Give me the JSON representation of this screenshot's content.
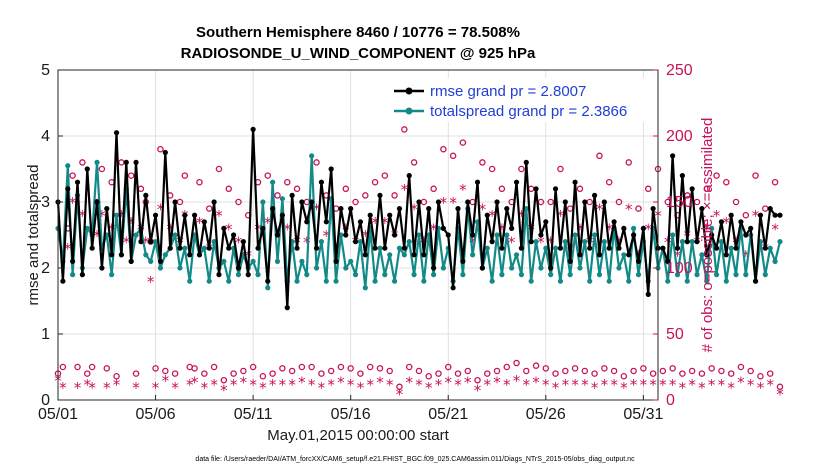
{
  "chart_data": {
    "type": "line",
    "title_line1": "Southern Hemisphere 8460 / 10776 = 78.508%",
    "title_line2": "RADIOSONDE_U_WIND_COMPONENT @ 925 hPa",
    "xlabel": "May.01,2015 00:00:00 start",
    "ylabel": "rmse and totalspread",
    "ylabel_right": "# of obs: o=possible; ×=assimilated",
    "footnote": "data file: /Users/raeder/DAI/ATM_forcXX/CAM6_setup/f.e21.FHIST_BGC.f09_025.CAM6assim.011/Diags_NTrS_2015-05/obs_diag_output.nc",
    "x_ticks": [
      {
        "day": 0,
        "label": "05/01"
      },
      {
        "day": 5,
        "label": "05/06"
      },
      {
        "day": 10,
        "label": "05/11"
      },
      {
        "day": 15,
        "label": "05/16"
      },
      {
        "day": 20,
        "label": "05/21"
      },
      {
        "day": 25,
        "label": "05/26"
      },
      {
        "day": 30,
        "label": "05/31"
      }
    ],
    "y_ticks": [
      "0",
      "1",
      "2",
      "3",
      "4",
      "5"
    ],
    "y2_ticks": [
      "0",
      "50",
      "100",
      "150",
      "200",
      "250"
    ],
    "xlim": [
      0,
      30.75
    ],
    "ylim": [
      0,
      5
    ],
    "y2lim": [
      0,
      250
    ],
    "x_step_days": 0.25,
    "legend_location": "top-right",
    "series": [
      {
        "name": "rmse grand pr = 2.8007",
        "color": "#000000",
        "values": [
          3.0,
          1.8,
          3.2,
          2.1,
          3.3,
          1.9,
          3.5,
          2.3,
          3.0,
          2.0,
          2.9,
          2.2,
          4.05,
          2.2,
          3.6,
          2.1,
          3.6,
          2.4,
          3.1,
          2.4,
          2.8,
          2.1,
          3.75,
          2.3,
          3.0,
          2.3,
          2.8,
          2.2,
          2.8,
          2.2,
          2.7,
          2.3,
          3.0,
          1.9,
          2.6,
          2.3,
          2.5,
          2.0,
          2.4,
          1.9,
          4.1,
          2.3,
          2.6,
          1.8,
          2.9,
          2.5,
          2.8,
          1.4,
          3.1,
          2.3,
          3.0,
          2.7,
          3.0,
          2.3,
          3.3,
          2.7,
          3.5,
          2.1,
          2.9,
          2.5,
          2.9,
          2.4,
          2.7,
          2.2,
          2.8,
          2.3,
          3.1,
          2.3,
          2.8,
          2.5,
          2.9,
          2.3,
          3.4,
          2.2,
          3.0,
          2.2,
          2.9,
          2.0,
          3.0,
          2.6,
          2.5,
          1.7,
          2.9,
          2.1,
          3.0,
          2.5,
          3.3,
          2.0,
          2.8,
          2.4,
          3.0,
          2.3,
          2.9,
          2.6,
          3.3,
          2.3,
          3.6,
          2.4,
          3.2,
          2.5,
          2.7,
          2.0,
          3.2,
          2.3,
          3.0,
          2.1,
          3.3,
          2.2,
          3.0,
          2.3,
          3.1,
          2.2,
          3.0,
          2.3,
          2.7,
          2.3,
          2.6,
          2.2,
          2.5,
          2.1,
          2.6,
          1.6,
          2.9,
          2.3,
          2.3,
          2.1,
          3.7,
          2.3,
          3.4,
          2.4,
          3.2,
          2.4,
          2.9,
          2.2,
          2.5,
          2.3,
          2.7,
          2.2,
          2.8,
          2.3,
          2.7,
          2.5,
          2.6,
          1.8,
          2.8,
          2.3,
          2.9,
          2.8,
          2.8
        ]
      },
      {
        "name": "totalspread grand pr = 2.3866",
        "color": "#138a88",
        "values": [
          2.6,
          2.1,
          3.55,
          1.9,
          3.1,
          2.0,
          2.6,
          2.5,
          3.6,
          2.3,
          2.5,
          1.9,
          2.8,
          2.2,
          3.2,
          2.1,
          2.5,
          2.6,
          2.2,
          2.1,
          2.4,
          2.0,
          2.2,
          2.3,
          2.5,
          2.0,
          2.3,
          1.8,
          2.5,
          2.2,
          2.3,
          1.8,
          2.4,
          2.0,
          2.1,
          1.8,
          2.3,
          1.9,
          2.2,
          2.0,
          2.1,
          1.9,
          3.0,
          1.7,
          3.3,
          2.1,
          3.05,
          1.8,
          2.4,
          1.8,
          2.1,
          1.9,
          3.7,
          2.0,
          2.4,
          1.8,
          3.05,
          1.8,
          2.5,
          2.0,
          2.1,
          1.9,
          2.4,
          1.7,
          2.6,
          1.8,
          2.3,
          1.9,
          2.2,
          1.8,
          2.3,
          2.2,
          2.4,
          1.9,
          2.5,
          1.8,
          2.5,
          1.9,
          2.6,
          2.0,
          2.3,
          1.8,
          2.6,
          1.9,
          2.9,
          2.2,
          2.7,
          2.0,
          2.3,
          1.8,
          2.5,
          1.9,
          2.5,
          2.0,
          2.2,
          1.9,
          2.9,
          1.8,
          2.4,
          2.0,
          2.3,
          1.9,
          2.3,
          1.8,
          2.4,
          1.9,
          2.5,
          2.0,
          2.4,
          1.8,
          2.5,
          1.9,
          2.4,
          1.8,
          2.6,
          2.0,
          2.2,
          1.8,
          2.6,
          1.9,
          2.4,
          1.8,
          2.6,
          2.0,
          2.3,
          1.8,
          2.5,
          1.9,
          2.4,
          1.8,
          2.4,
          1.9,
          2.2,
          1.8,
          2.6,
          1.9,
          2.4,
          1.8,
          2.3,
          1.9,
          2.6,
          1.9,
          2.5,
          1.8,
          2.4,
          1.9,
          2.3,
          2.1,
          2.4
        ]
      },
      {
        "name": "possible",
        "color": "#c8115a",
        "axis": "right",
        "marker": "o",
        "values": [
          20,
          25,
          130,
          170,
          25,
          180,
          20,
          25,
          150,
          175,
          24,
          165,
          18,
          180,
          150,
          170,
          20,
          160,
          150,
          120,
          24,
          190,
          22,
          155,
          20,
          150,
          170,
          25,
          24,
          165,
          20,
          145,
          25,
          175,
          15,
          160,
          20,
          150,
          22,
          140,
          25,
          165,
          18,
          170,
          20,
          155,
          24,
          165,
          22,
          160,
          25,
          150,
          25,
          180,
          20,
          155,
          22,
          145,
          25,
          160,
          24,
          150,
          20,
          155,
          25,
          165,
          24,
          170,
          22,
          155,
          10,
          205,
          25,
          180,
          22,
          150,
          18,
          160,
          20,
          190,
          25,
          185,
          20,
          195,
          22,
          150,
          15,
          180,
          20,
          175,
          22,
          160,
          25,
          150,
          28,
          175,
          22,
          160,
          26,
          150,
          24,
          150,
          20,
          175,
          22,
          145,
          24,
          160,
          22,
          150,
          20,
          185,
          24,
          165,
          22,
          150,
          18,
          180,
          22,
          145,
          24,
          160,
          20,
          175,
          22,
          150,
          24,
          140,
          20,
          155,
          22,
          150,
          20,
          160,
          24,
          170,
          22,
          165,
          20,
          150,
          25,
          140,
          22,
          170,
          18,
          145,
          20,
          165,
          10
        ]
      },
      {
        "name": "assimilated",
        "color": "#c8115a",
        "axis": "right",
        "marker": "*",
        "values": [
          15,
          10,
          115,
          150,
          10,
          140,
          12,
          10,
          125,
          140,
          10,
          130,
          12,
          140,
          120,
          135,
          10,
          130,
          120,
          90,
          10,
          145,
          15,
          130,
          10,
          120,
          140,
          12,
          14,
          135,
          10,
          115,
          12,
          140,
          8,
          130,
          12,
          120,
          14,
          110,
          12,
          130,
          10,
          135,
          12,
          125,
          12,
          130,
          12,
          120,
          14,
          120,
          12,
          145,
          10,
          125,
          12,
          115,
          14,
          130,
          12,
          120,
          10,
          125,
          12,
          135,
          14,
          135,
          12,
          125,
          5,
          160,
          14,
          145,
          12,
          120,
          10,
          130,
          12,
          150,
          14,
          150,
          12,
          160,
          14,
          120,
          8,
          145,
          12,
          140,
          14,
          130,
          12,
          120,
          15,
          140,
          12,
          130,
          14,
          120,
          12,
          120,
          10,
          140,
          12,
          115,
          12,
          130,
          12,
          120,
          10,
          145,
          12,
          130,
          12,
          120,
          10,
          145,
          12,
          110,
          12,
          130,
          12,
          140,
          12,
          120,
          12,
          110,
          10,
          125,
          12,
          120,
          10,
          130,
          12,
          140,
          12,
          135,
          10,
          120,
          14,
          110,
          12,
          140,
          10,
          115,
          12,
          130,
          5
        ]
      }
    ]
  }
}
